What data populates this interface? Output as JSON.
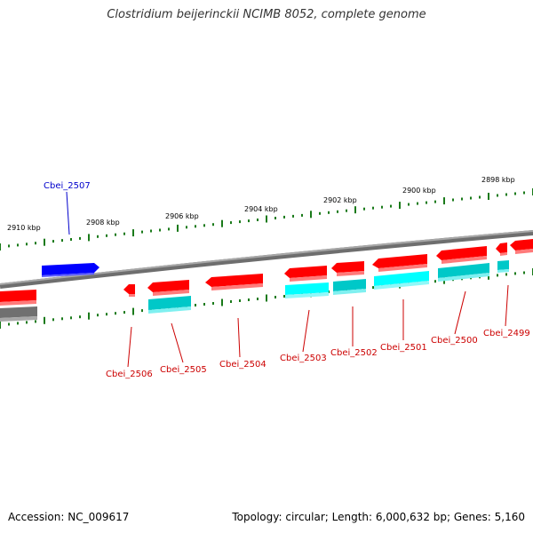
{
  "title": "Clostridium beijerinckii NCIMB 8052, complete genome",
  "footer": {
    "accession": "Accession: NC_009617",
    "summary": "Topology: circular; Length: 6,000,632 bp; Genes: 5,160"
  },
  "colors": {
    "forward_gene": "#0000ff",
    "reverse_gene": "#ff0000",
    "reverse_cds": "#00d8d8",
    "other_feature": "#808080",
    "backbone": "#808080",
    "tick": "#1a7a1a"
  },
  "scale_labels": [
    "2910 kbp",
    "2908 kbp",
    "2906 kbp",
    "2904 kbp",
    "2902 kbp",
    "2900 kbp",
    "2898 kbp"
  ],
  "gene_labels": [
    {
      "name": "Cbei_2507",
      "strand": "forward"
    },
    {
      "name": "Cbei_2506",
      "strand": "reverse"
    },
    {
      "name": "Cbei_2505",
      "strand": "reverse"
    },
    {
      "name": "Cbei_2504",
      "strand": "reverse"
    },
    {
      "name": "Cbei_2503",
      "strand": "reverse"
    },
    {
      "name": "Cbei_2502",
      "strand": "reverse"
    },
    {
      "name": "Cbei_2501",
      "strand": "reverse"
    },
    {
      "name": "Cbei_2500",
      "strand": "reverse"
    },
    {
      "name": "Cbei_2499",
      "strand": "reverse"
    }
  ]
}
